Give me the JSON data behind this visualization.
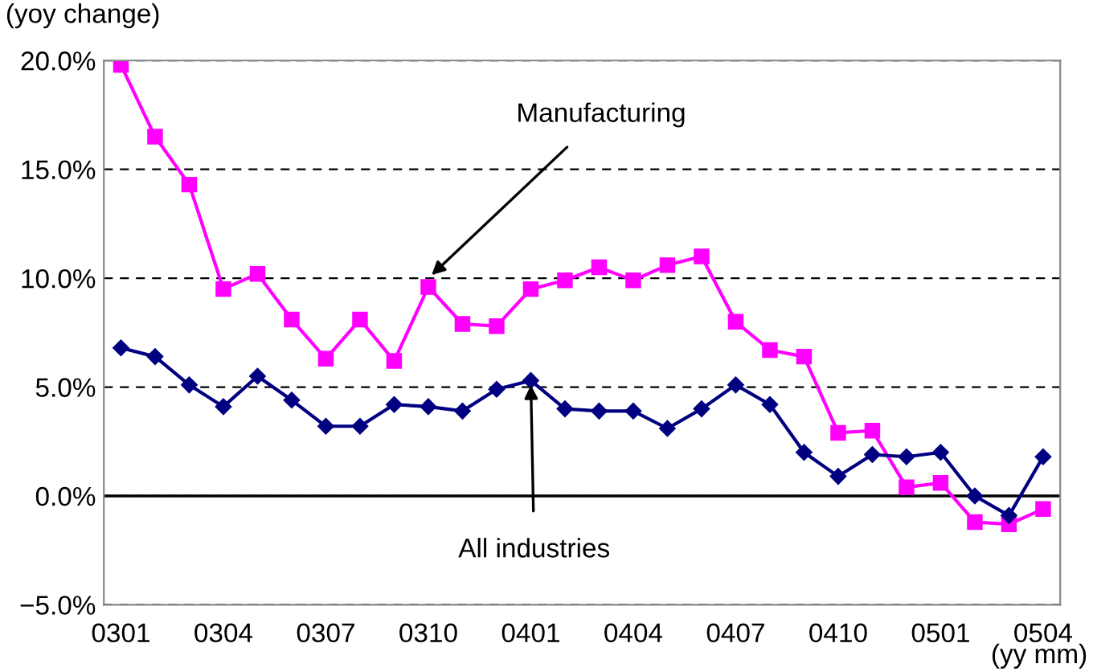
{
  "chart_data": {
    "type": "line",
    "ylabel": "(yoy change)",
    "xlabel": "(yy mm)",
    "categories": [
      "0301",
      null,
      null,
      "0304",
      null,
      null,
      "0307",
      null,
      null,
      "0310",
      null,
      null,
      "0401",
      null,
      null,
      "0404",
      null,
      null,
      "0407",
      null,
      null,
      "0410",
      null,
      null,
      "0501",
      null,
      null,
      "0504"
    ],
    "series": [
      {
        "color": "#ff00ff",
        "marker": "square",
        "values": [
          19.8,
          16.5,
          14.3,
          9.5,
          10.2,
          8.1,
          6.3,
          8.1,
          6.2,
          9.6,
          7.9,
          7.8,
          9.5,
          9.9,
          10.5,
          9.9,
          10.6,
          11.0,
          8.0,
          6.7,
          6.4,
          2.9,
          3.0,
          0.4,
          0.6,
          -1.2,
          -1.3,
          -0.6
        ]
      },
      {
        "color": "#000080",
        "marker": "diamond",
        "values": [
          6.8,
          6.4,
          5.1,
          4.1,
          5.5,
          4.4,
          3.2,
          3.2,
          4.2,
          4.1,
          3.9,
          4.9,
          5.3,
          4.0,
          3.9,
          3.9,
          3.1,
          4.0,
          5.1,
          4.2,
          2.0,
          0.9,
          1.9,
          1.8,
          2.0,
          0.0,
          -0.9,
          1.8
        ]
      }
    ],
    "ylim": [
      -5,
      20
    ],
    "yticks": [
      {
        "value": -5,
        "label": "−5.0%"
      },
      {
        "value": 0,
        "label": "0.0%"
      },
      {
        "value": 5,
        "label": "5.0%"
      },
      {
        "value": 10,
        "label": "10.0%"
      },
      {
        "value": 15,
        "label": "15.0%"
      },
      {
        "value": 20,
        "label": "20.0%"
      }
    ],
    "grid": "y",
    "ref_lines": [
      {
        "axis": "y",
        "value": 0,
        "color": "#000000",
        "line_style": "solid"
      }
    ],
    "annotations": [
      {
        "text": "Manufacturing",
        "x": "0310",
        "y": 10
      },
      {
        "text": "All industries",
        "x": "0401",
        "y": 5.3
      }
    ],
    "line_style": "solid",
    "legend": false
  }
}
